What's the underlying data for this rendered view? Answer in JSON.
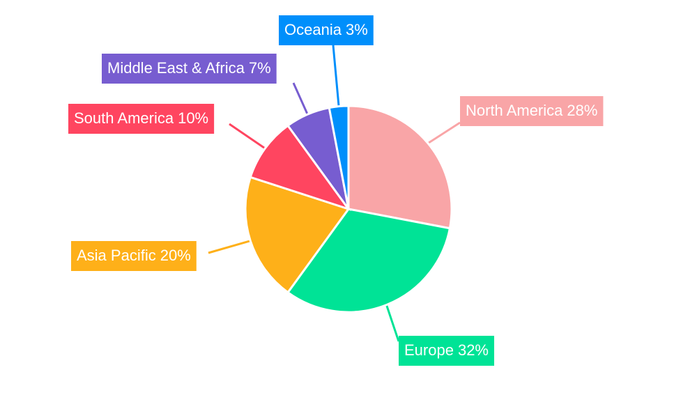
{
  "chart_data": {
    "type": "pie",
    "categories": [
      "North America",
      "Europe",
      "Asia Pacific",
      "South America",
      "Middle East & Africa",
      "Oceania"
    ],
    "values": [
      28,
      32,
      20,
      10,
      7,
      3
    ],
    "value_labels": [
      "28%",
      "32%",
      "20%",
      "10%",
      "7%",
      "3%"
    ],
    "colors": [
      "#f9a5a7",
      "#00e396",
      "#feb019",
      "#ff4560",
      "#775dd0",
      "#008ffb"
    ]
  }
}
